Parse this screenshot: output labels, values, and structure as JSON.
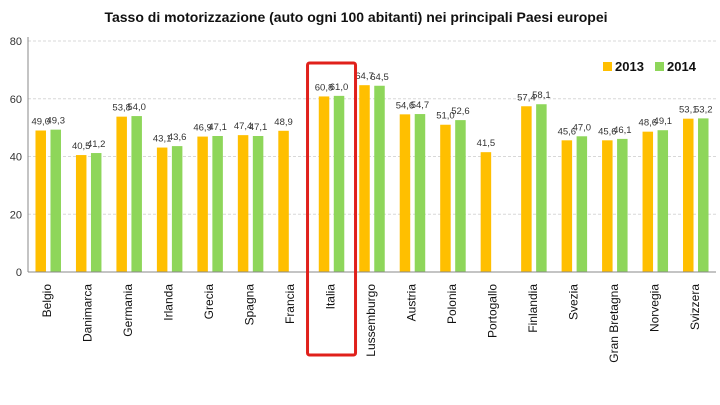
{
  "chart_data": {
    "type": "bar",
    "title": "Tasso di motorizzazione (auto ogni 100 abitanti) nei principali Paesi europei",
    "categories": [
      "Belgio",
      "Danimarca",
      "Germania",
      "Irlanda",
      "Grecia",
      "Spagna",
      "Francia",
      "Italia",
      "Lussemburgo",
      "Austria",
      "Polonia",
      "Portogallo",
      "Finlandia",
      "Svezia",
      "Gran Bretagna",
      "Norvegia",
      "Svizzera"
    ],
    "series": [
      {
        "name": "2013",
        "color": "#FFBF00",
        "values": [
          49.0,
          40.5,
          53.8,
          43.1,
          46.9,
          47.4,
          48.9,
          60.8,
          64.7,
          54.6,
          51.0,
          41.5,
          57.4,
          45.6,
          45.6,
          48.6,
          53.1
        ],
        "labels": [
          "49,0",
          "40,5",
          "53,8",
          "43,1",
          "46,9",
          "47,4",
          "48,9",
          "60,8",
          "64,7",
          "54,6",
          "51,0",
          "41,5",
          "57,4",
          "45,6",
          "45,6",
          "48,6",
          "53,1"
        ]
      },
      {
        "name": "2014",
        "color": "#8ED65A",
        "values": [
          49.3,
          41.2,
          54.0,
          43.6,
          47.1,
          47.1,
          null,
          61.0,
          64.5,
          54.7,
          52.6,
          null,
          58.1,
          47.0,
          46.1,
          49.1,
          53.2
        ],
        "labels": [
          "49,3",
          "41,2",
          "54,0",
          "43,6",
          "47,1",
          "47,1",
          "",
          "61,0",
          "64,5",
          "54,7",
          "52,6",
          "",
          "58,1",
          "47,0",
          "46,1",
          "49,1",
          "53,2"
        ]
      }
    ],
    "yticks": [
      "0",
      "20",
      "40",
      "60",
      "80"
    ],
    "ylim": [
      0,
      80
    ],
    "grid": true,
    "legend": "top-right",
    "highlight_category": "Italia",
    "highlight_color": "#E0201B"
  }
}
